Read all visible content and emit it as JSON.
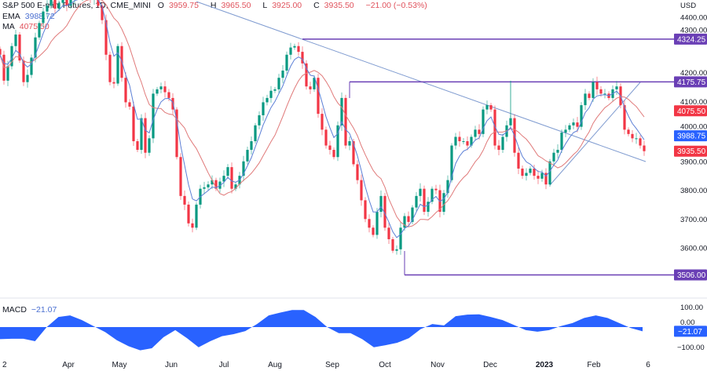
{
  "header": {
    "symbol": "S&P 500 E-mini Futures, 1D, CME_MINI",
    "open_label": "O",
    "open": "3959.75",
    "high_label": "H",
    "high": "3965.50",
    "low_label": "L",
    "low": "3925.00",
    "close_label": "C",
    "close": "3935.50",
    "change": "−21.00 (−0.53%)"
  },
  "indicators": {
    "ema_label": "EMA",
    "ema_value": "3988.72",
    "ma_label": "MA",
    "ma_value": "4075.50",
    "macd_label": "MACD",
    "macd_value": "−21.07"
  },
  "colors": {
    "up": "#089981",
    "down": "#f23645",
    "ema": "#5b7fd6",
    "ma": "#e07a7a",
    "levels": "#6a3fb5",
    "trendline": "#7f9bd0",
    "macd_fill": "#2962ff"
  },
  "chart_data": {
    "type": "candlestick",
    "currency": "USD",
    "ylim": [
      3480,
      4520
    ],
    "y_ticks": [
      "4400.00",
      "4300.00",
      "4200.00",
      "4100.00",
      "4000.00",
      "3900.00",
      "3800.00",
      "3700.00",
      "3600.00"
    ],
    "x_ticks": [
      "2",
      "Apr",
      "May",
      "Jun",
      "Jul",
      "Aug",
      "Sep",
      "Oct",
      "Nov",
      "Dec",
      "2023",
      "Feb",
      "6"
    ],
    "closes": [
      4270,
      4180,
      4230,
      4300,
      4340,
      4250,
      4175,
      4200,
      4260,
      4330,
      4380,
      4420,
      4440,
      4460,
      4430,
      4450,
      4470,
      4440,
      4460,
      4480,
      4470,
      4500,
      4480,
      4460,
      4470,
      4440,
      4390,
      4270,
      4175,
      4170,
      4300,
      4190,
      4105,
      4090,
      3970,
      3940,
      4050,
      3930,
      3980,
      4135,
      4150,
      4160,
      4140,
      4120,
      4080,
      3915,
      3780,
      3750,
      3685,
      3670,
      3750,
      3805,
      3810,
      3820,
      3835,
      3805,
      3830,
      3850,
      3880,
      3805,
      3820,
      3850,
      3900,
      3940,
      3970,
      4025,
      4060,
      4105,
      4120,
      4145,
      4150,
      4190,
      4215,
      4270,
      4295,
      4300,
      4280,
      4240,
      4160,
      4150,
      4190,
      4065,
      4010,
      3955,
      3940,
      3915,
      4025,
      4120,
      3955,
      3970,
      3890,
      3835,
      3765,
      3700,
      3670,
      3645,
      3725,
      3780,
      3670,
      3630,
      3590,
      3595,
      3670,
      3710,
      3690,
      3740,
      3780,
      3805,
      3725,
      3760,
      3805,
      3800,
      3725,
      3790,
      3835,
      3955,
      3985,
      3970,
      3970,
      3955,
      3985,
      4010,
      3995,
      4080,
      4095,
      4080,
      3955,
      3940,
      3985,
      4025,
      4050,
      3930,
      3875,
      3850,
      3860,
      3875,
      3850,
      3840,
      3860,
      3820,
      3900,
      3930,
      3940,
      4000,
      4010,
      4025,
      4035,
      4020,
      4095,
      4135,
      4120,
      4175,
      4150,
      4135,
      4135,
      4120,
      4150,
      4160,
      4095,
      4010,
      3995,
      3980,
      3980,
      3955,
      3935.5
    ],
    "horizontal_levels": [
      {
        "label": "4324.25",
        "value": 4324.25
      },
      {
        "label": "4175.75",
        "value": 4175.75
      },
      {
        "label": "3506.00",
        "value": 3506.0
      }
    ],
    "price_labels": [
      {
        "label": "4075.50",
        "value": 4075.5,
        "color": "#f23645"
      },
      {
        "label": "3988.75",
        "value": 3988.75,
        "color": "#2962ff"
      },
      {
        "label": "3935.50",
        "value": 3935.5,
        "color": "#f23645"
      }
    ],
    "macd": {
      "ylim": [
        -130,
        130
      ],
      "y_ticks": [
        "100.00",
        "0.00",
        "−100.00"
      ],
      "last_label": "−21.07",
      "values": [
        -60,
        -58,
        -58,
        -70,
        0,
        50,
        58,
        35,
        5,
        -25,
        -65,
        -95,
        -115,
        -105,
        -50,
        -15,
        -55,
        -100,
        -70,
        -45,
        -35,
        -20,
        15,
        58,
        72,
        85,
        85,
        50,
        0,
        -30,
        -30,
        -60,
        -100,
        -90,
        -78,
        -55,
        -10,
        15,
        8,
        54,
        62,
        63,
        50,
        35,
        10,
        -15,
        -23,
        -15,
        5,
        20,
        45,
        58,
        45,
        20,
        -5,
        -21.07
      ]
    }
  }
}
